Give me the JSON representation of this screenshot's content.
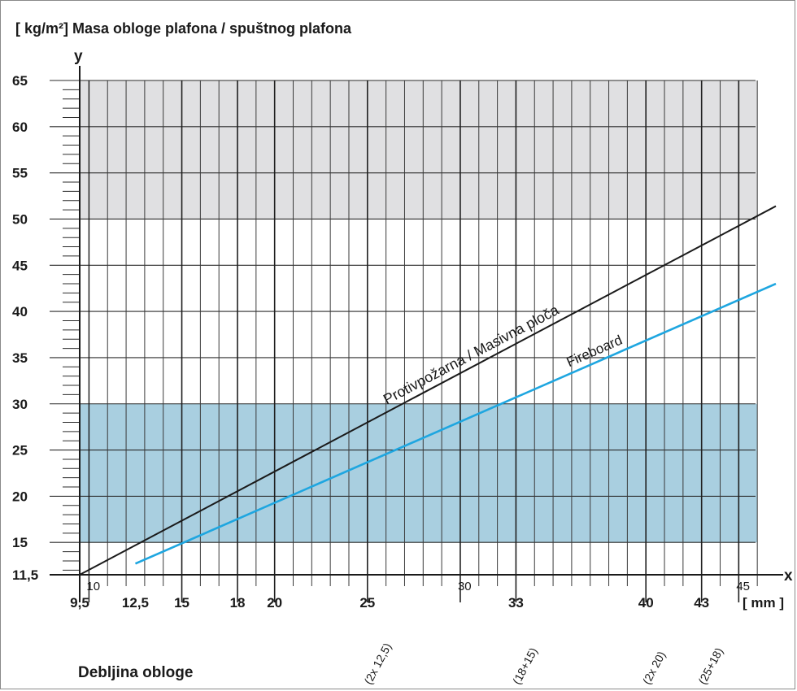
{
  "chart_data": {
    "type": "line",
    "title": "[ kg/m²]  Masa obloge plafona / spuštnog plafona",
    "ylabel": "y",
    "xlabel": "x",
    "x_unit": "[ mm ]",
    "x_caption": "Debljina obloge",
    "xlim": [
      9.5,
      47
    ],
    "ylim": [
      11.5,
      65
    ],
    "y_ticks": [
      {
        "value": 11.5,
        "label": "11,5"
      },
      {
        "value": 15,
        "label": "15"
      },
      {
        "value": 20,
        "label": "20"
      },
      {
        "value": 25,
        "label": "25"
      },
      {
        "value": 30,
        "label": "30"
      },
      {
        "value": 35,
        "label": "35"
      },
      {
        "value": 40,
        "label": "40"
      },
      {
        "value": 45,
        "label": "45"
      },
      {
        "value": 50,
        "label": "50"
      },
      {
        "value": 55,
        "label": "55"
      },
      {
        "value": 60,
        "label": "60"
      },
      {
        "value": 65,
        "label": "65"
      }
    ],
    "x_ticks_major": [
      {
        "value": 9.5,
        "label": "9,5"
      },
      {
        "value": 12.5,
        "label": "12,5"
      },
      {
        "value": 15,
        "label": "15"
      },
      {
        "value": 18,
        "label": "18"
      },
      {
        "value": 20,
        "label": "20"
      },
      {
        "value": 25,
        "label": "25"
      },
      {
        "value": 33,
        "label": "33"
      },
      {
        "value": 40,
        "label": "40"
      },
      {
        "value": 43,
        "label": "43"
      }
    ],
    "x_ticks_minor": [
      {
        "value": 10,
        "label": "10"
      },
      {
        "value": 30,
        "label": "30"
      },
      {
        "value": 45,
        "label": "45"
      }
    ],
    "x_annotations": [
      {
        "value": 25,
        "label": "(2x 12,5)"
      },
      {
        "value": 33,
        "label": "(18+15)"
      },
      {
        "value": 40,
        "label": "(2x 20)"
      },
      {
        "value": 43,
        "label": "(25+18)"
      }
    ],
    "bands": [
      {
        "y_from": 50,
        "y_to": 65,
        "x_from": 9.5,
        "x_to": 46,
        "color": "#e0e0e2"
      },
      {
        "y_from": 15,
        "y_to": 30,
        "x_from": 9.5,
        "x_to": 46,
        "color": "#a9cfe0"
      }
    ],
    "series": [
      {
        "name": "Protivpožarna / Masivna ploča",
        "color": "#1a1a1a",
        "x": [
          9.5,
          47
        ],
        "y": [
          11.5,
          51.4
        ]
      },
      {
        "name": "Fireboard",
        "color": "#1ea6e0",
        "x": [
          12.5,
          47
        ],
        "y": [
          12.7,
          43
        ]
      }
    ],
    "grid": true
  }
}
